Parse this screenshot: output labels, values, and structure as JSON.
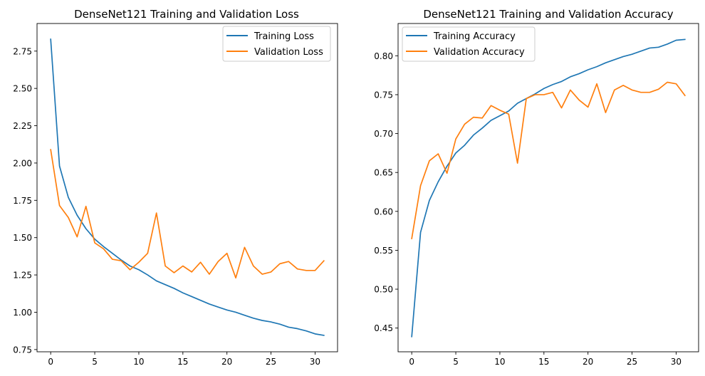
{
  "chart_data": [
    {
      "type": "line",
      "title": "DenseNet121 Training and Validation Loss",
      "xlabel": "",
      "ylabel": "",
      "xlim": [
        -1.55,
        32.55
      ],
      "ylim": [
        0.735,
        2.935
      ],
      "xticks": [
        0,
        5,
        10,
        15,
        20,
        25,
        30
      ],
      "yticks": [
        0.75,
        1.0,
        1.25,
        1.5,
        1.75,
        2.0,
        2.25,
        2.5,
        2.75
      ],
      "ytick_labels": [
        "0.75",
        "1.00",
        "1.25",
        "1.50",
        "1.75",
        "2.00",
        "2.25",
        "2.50",
        "2.75"
      ],
      "grid": false,
      "legend": "upper right",
      "x": [
        0,
        1,
        2,
        3,
        4,
        5,
        6,
        7,
        8,
        9,
        10,
        11,
        12,
        13,
        14,
        15,
        16,
        17,
        18,
        19,
        20,
        21,
        22,
        23,
        24,
        25,
        26,
        27,
        28,
        29,
        30,
        31
      ],
      "series": [
        {
          "name": "Training Loss",
          "color": "#1f77b4",
          "values": [
            2.83,
            1.98,
            1.77,
            1.65,
            1.56,
            1.49,
            1.44,
            1.395,
            1.35,
            1.31,
            1.285,
            1.25,
            1.21,
            1.185,
            1.16,
            1.13,
            1.105,
            1.08,
            1.055,
            1.035,
            1.015,
            1.0,
            0.98,
            0.96,
            0.945,
            0.935,
            0.92,
            0.9,
            0.89,
            0.875,
            0.855,
            0.845
          ]
        },
        {
          "name": "Validation Loss",
          "color": "#ff7f0e",
          "values": [
            2.09,
            1.715,
            1.635,
            1.505,
            1.71,
            1.465,
            1.425,
            1.355,
            1.345,
            1.285,
            1.335,
            1.395,
            1.665,
            1.31,
            1.265,
            1.31,
            1.27,
            1.335,
            1.255,
            1.34,
            1.395,
            1.23,
            1.435,
            1.31,
            1.255,
            1.27,
            1.325,
            1.34,
            1.29,
            1.28,
            1.28,
            1.345
          ]
        }
      ]
    },
    {
      "type": "line",
      "title": "DenseNet121 Training and Validation Accuracy",
      "xlabel": "",
      "ylabel": "",
      "xlim": [
        -1.55,
        32.55
      ],
      "ylim": [
        0.4195,
        0.8415
      ],
      "xticks": [
        0,
        5,
        10,
        15,
        20,
        25,
        30
      ],
      "yticks": [
        0.45,
        0.5,
        0.55,
        0.6,
        0.65,
        0.7,
        0.75,
        0.8
      ],
      "ytick_labels": [
        "0.45",
        "0.50",
        "0.55",
        "0.60",
        "0.65",
        "0.70",
        "0.75",
        "0.80"
      ],
      "grid": false,
      "legend": "upper left",
      "x": [
        0,
        1,
        2,
        3,
        4,
        5,
        6,
        7,
        8,
        9,
        10,
        11,
        12,
        13,
        14,
        15,
        16,
        17,
        18,
        19,
        20,
        21,
        22,
        23,
        24,
        25,
        26,
        27,
        28,
        29,
        30,
        31
      ],
      "series": [
        {
          "name": "Training Accuracy",
          "color": "#1f77b4",
          "values": [
            0.439,
            0.573,
            0.614,
            0.638,
            0.658,
            0.675,
            0.685,
            0.698,
            0.707,
            0.717,
            0.723,
            0.729,
            0.739,
            0.745,
            0.751,
            0.758,
            0.763,
            0.767,
            0.773,
            0.777,
            0.782,
            0.786,
            0.791,
            0.795,
            0.799,
            0.802,
            0.806,
            0.81,
            0.811,
            0.815,
            0.82,
            0.821
          ]
        },
        {
          "name": "Validation Accuracy",
          "color": "#ff7f0e",
          "values": [
            0.565,
            0.633,
            0.665,
            0.674,
            0.649,
            0.693,
            0.712,
            0.721,
            0.72,
            0.736,
            0.73,
            0.725,
            0.662,
            0.745,
            0.75,
            0.75,
            0.753,
            0.733,
            0.756,
            0.743,
            0.734,
            0.764,
            0.727,
            0.756,
            0.762,
            0.756,
            0.753,
            0.753,
            0.757,
            0.766,
            0.764,
            0.749
          ]
        }
      ]
    }
  ]
}
